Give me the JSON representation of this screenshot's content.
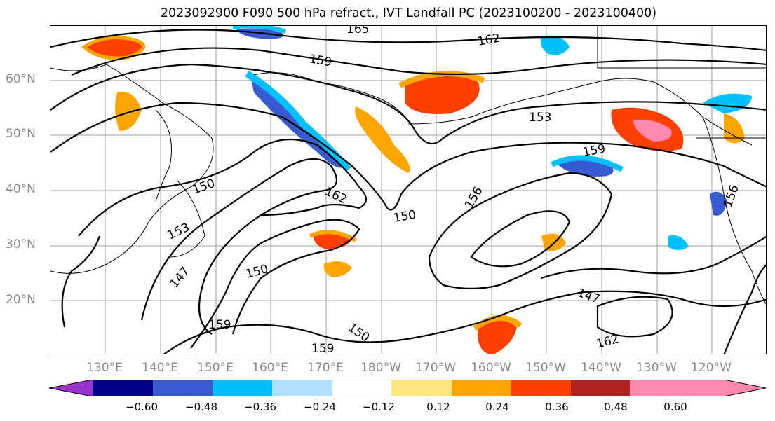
{
  "title": "2023092900 F090 500 hPa refract., IVT Landfall PC (2023100200 - 2023100400)",
  "lat_labels": [
    "60°N",
    "50°N",
    "40°N",
    "30°N",
    "20°N"
  ],
  "lon_labels": [
    "130°E",
    "140°E",
    "150°E",
    "160°E",
    "170°E",
    "180°W",
    "170°W",
    "160°W",
    "150°W",
    "140°W",
    "130°W",
    "120°W"
  ],
  "colorbar": {
    "ticks": [
      "−0.60",
      "−0.48",
      "−0.36",
      "−0.24",
      "−0.12",
      "0.12",
      "0.24",
      "0.36",
      "0.48",
      "0.60"
    ],
    "colors": [
      "#9932cc",
      "#00008b",
      "#3a5bd0",
      "#00bfff",
      "#b0e0ff",
      "#ffffff",
      "#ffe680",
      "#ffa500",
      "#ff4000",
      "#b22222",
      "#ff88b0"
    ]
  },
  "contour_labels": [
    "165",
    "162",
    "159",
    "153",
    "156",
    "150",
    "147",
    "159",
    "162",
    "156",
    "150",
    "153",
    "150",
    "147",
    "159",
    "150",
    "159",
    "162"
  ],
  "colors": {
    "land_outline": "#000000",
    "grid": "#999999",
    "label_gray": "#8a8a8a"
  }
}
